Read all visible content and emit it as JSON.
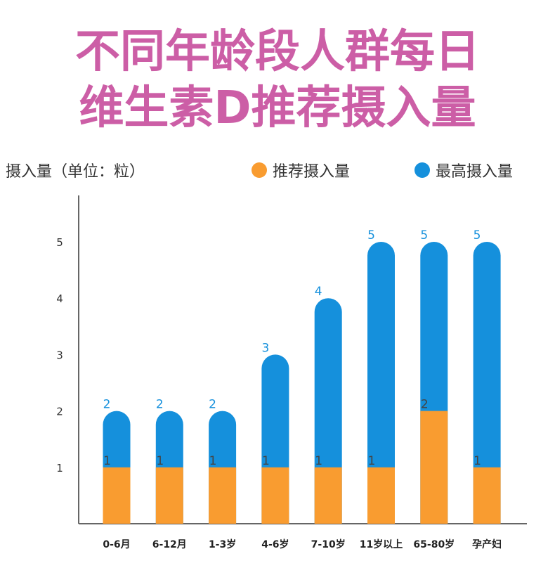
{
  "title_lines": [
    "不同年龄段人群每日",
    "维生素D推荐摄入量"
  ],
  "unit_label": "摄入量（单位：粒）",
  "colors": {
    "title": "#cc5ea6",
    "recommended": "#f99c30",
    "max": "#1590dc",
    "axis": "#666666"
  },
  "chart_data": {
    "type": "bar",
    "title": "不同年龄段人群每日维生素D推荐摄入量",
    "ylabel": "摄入量（单位：粒）",
    "xlabel": "",
    "ylim": [
      0,
      5
    ],
    "yticks": [
      1,
      2,
      3,
      4,
      5
    ],
    "legend_position": "top-right",
    "grid": false,
    "categories": [
      "0-6月",
      "6-12月",
      "1-3岁",
      "4-6岁",
      "7-10岁",
      "11岁以上",
      "65-80岁",
      "孕产妇"
    ],
    "series": [
      {
        "name": "推荐摄入量",
        "color": "#f99c30",
        "values": [
          1,
          1,
          1,
          1,
          1,
          1,
          2,
          1
        ]
      },
      {
        "name": "最高摄入量",
        "color": "#1590dc",
        "values": [
          2,
          2,
          2,
          3,
          4,
          5,
          5,
          5
        ]
      }
    ]
  }
}
